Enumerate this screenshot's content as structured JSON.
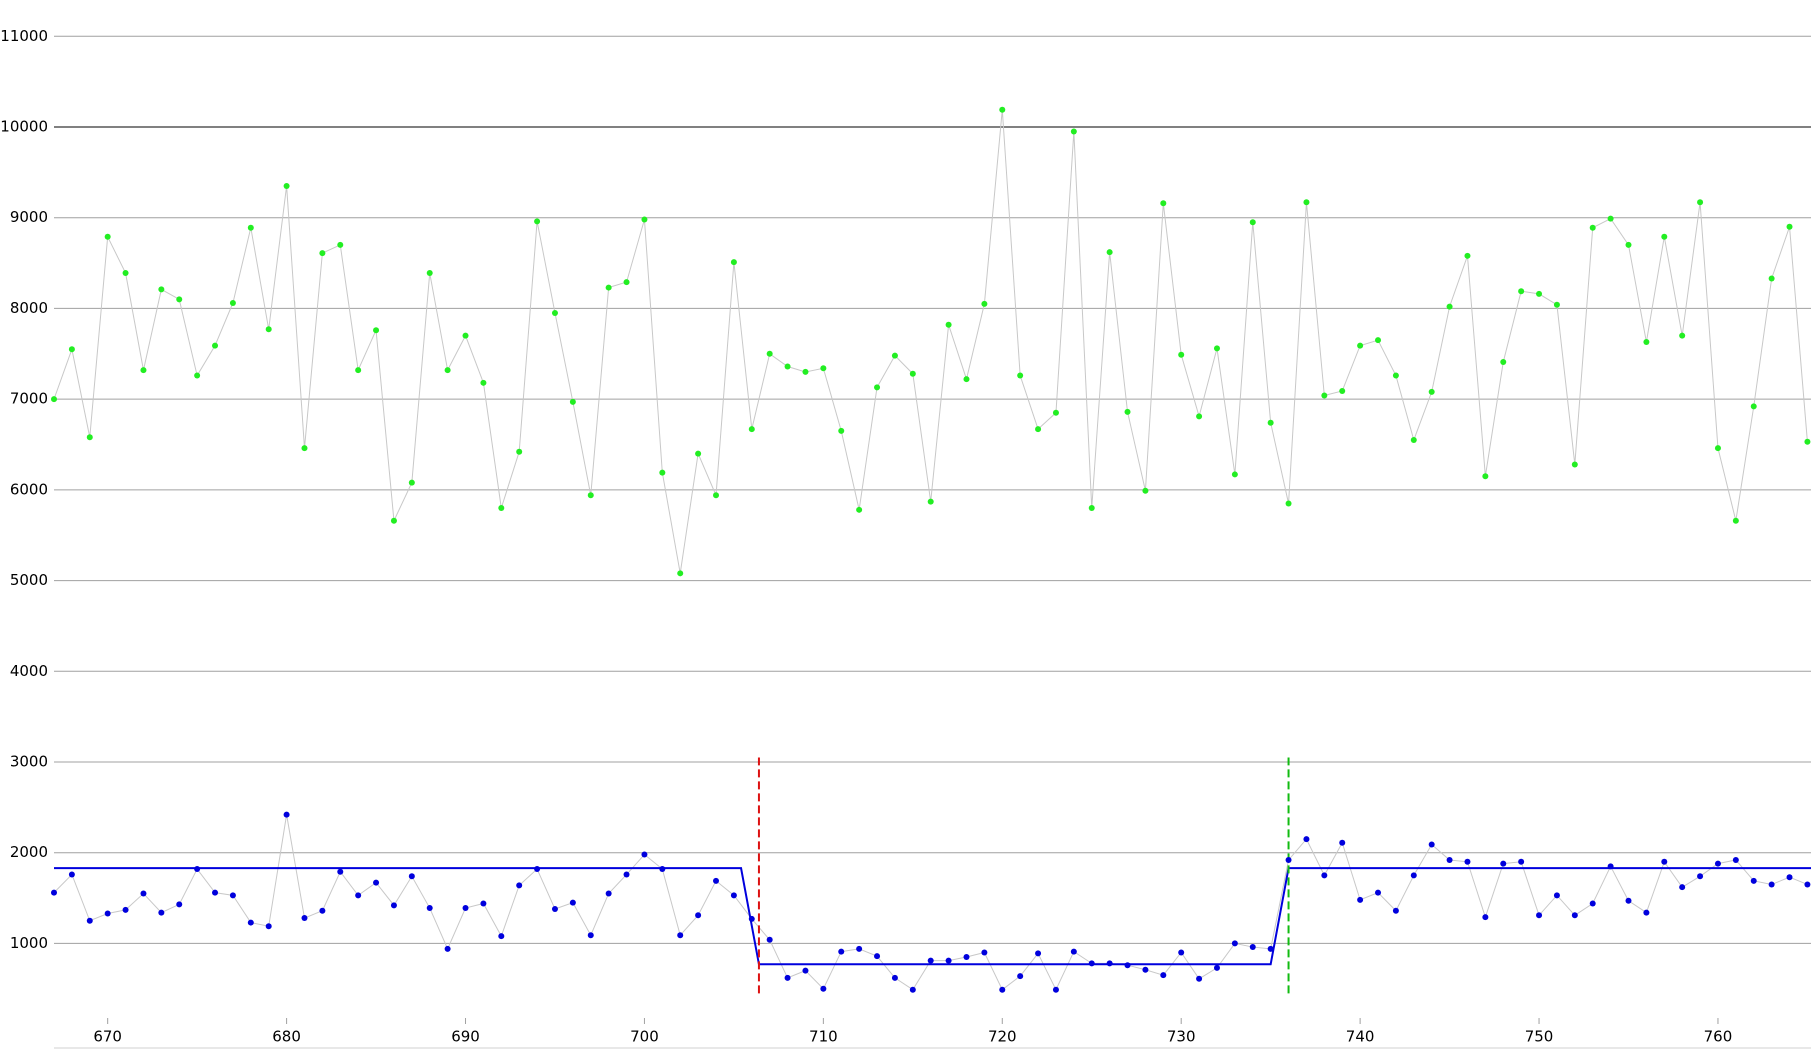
{
  "chart_data": {
    "type": "line",
    "x": [
      667,
      668,
      669,
      670,
      671,
      672,
      673,
      674,
      675,
      676,
      677,
      678,
      679,
      680,
      681,
      682,
      683,
      684,
      685,
      686,
      687,
      688,
      689,
      690,
      691,
      692,
      693,
      694,
      695,
      696,
      697,
      698,
      699,
      700,
      701,
      702,
      703,
      704,
      705,
      706,
      707,
      708,
      709,
      710,
      711,
      712,
      713,
      714,
      715,
      716,
      717,
      718,
      719,
      720,
      721,
      722,
      723,
      724,
      725,
      726,
      727,
      728,
      729,
      730,
      731,
      732,
      733,
      734,
      735,
      736,
      737,
      738,
      739,
      740,
      741,
      742,
      743,
      744,
      745,
      746,
      747,
      748,
      749,
      750,
      751,
      752,
      753,
      754,
      755,
      756,
      757,
      758,
      759,
      760,
      761,
      762,
      763,
      764,
      765
    ],
    "series": [
      {
        "color": "#22ee22",
        "line_color": "#c8c8c8",
        "markers": true,
        "values": [
          7000,
          7550,
          6580,
          8790,
          8390,
          7320,
          8210,
          8100,
          7260,
          7590,
          8060,
          8890,
          7770,
          9350,
          6460,
          8610,
          8700,
          7320,
          7760,
          5660,
          6080,
          8390,
          7320,
          7700,
          7180,
          5800,
          6420,
          8960,
          7950,
          6970,
          5940,
          8230,
          8290,
          8980,
          6190,
          5080,
          6400,
          5940,
          8510,
          6670,
          7500,
          7360,
          7300,
          7340,
          6650,
          5780,
          7130,
          7480,
          7280,
          5870,
          7820,
          7220,
          8050,
          10190,
          7260,
          6670,
          6850,
          9950,
          5800,
          8620,
          6860,
          5990,
          9160,
          7490,
          6810,
          7560,
          6170,
          8950,
          6740,
          5850,
          9170,
          7040,
          7090,
          7590,
          7650,
          7260,
          6550,
          7080,
          8020,
          8580,
          6150,
          7410,
          8190,
          8160,
          8040,
          6280,
          8890,
          8990,
          8700,
          7630,
          8790,
          7700,
          9170,
          6460,
          5660,
          6920,
          8330,
          8900,
          6530
        ]
      },
      {
        "color": "#0000dd",
        "line_color": "#c8c8c8",
        "markers": true,
        "values": [
          1560,
          1760,
          1250,
          1330,
          1370,
          1550,
          1340,
          1430,
          1820,
          1560,
          1530,
          1230,
          1190,
          2420,
          1280,
          1360,
          1790,
          1530,
          1670,
          1420,
          1740,
          1390,
          940,
          1390,
          1440,
          1080,
          1640,
          1820,
          1380,
          1450,
          1090,
          1550,
          1760,
          1980,
          1820,
          1090,
          1310,
          1690,
          1530,
          1270,
          1040,
          620,
          700,
          500,
          910,
          940,
          860,
          620,
          490,
          810,
          810,
          850,
          900,
          490,
          640,
          890,
          490,
          910,
          780,
          780,
          760,
          710,
          650,
          900,
          610,
          730,
          1000,
          960,
          940,
          1920,
          2150,
          1750,
          2110,
          1480,
          1560,
          1360,
          1750,
          2090,
          1920,
          1900,
          1290,
          1880,
          1900,
          1310,
          1530,
          1310,
          1440,
          1850,
          1470,
          1340,
          1900,
          1620,
          1740,
          1880,
          1920,
          1690,
          1650,
          1730,
          1650
        ]
      },
      {
        "color": "#0000dd",
        "line_color": "#0000dd",
        "markers": false,
        "x": [
          667,
          705.4,
          706.4,
          735,
          736,
          765.2
        ],
        "values": [
          1830,
          1830,
          770,
          770,
          1830,
          1830
        ]
      }
    ],
    "vlines": [
      {
        "x": 706.4,
        "color": "#dd1111",
        "range": [
          450,
          3050
        ]
      },
      {
        "x": 736,
        "color": "#11bb11",
        "range": [
          450,
          3050
        ]
      }
    ],
    "highlight_line": 10000,
    "xlim": [
      667,
      765.2
    ],
    "ylim": [
      200,
      11400
    ],
    "xticks": [
      670,
      680,
      690,
      700,
      710,
      720,
      730,
      740,
      750,
      760
    ],
    "yticks": [
      1000,
      2000,
      3000,
      4000,
      5000,
      6000,
      7000,
      8000,
      9000,
      10000,
      11000
    ],
    "grid": true
  }
}
